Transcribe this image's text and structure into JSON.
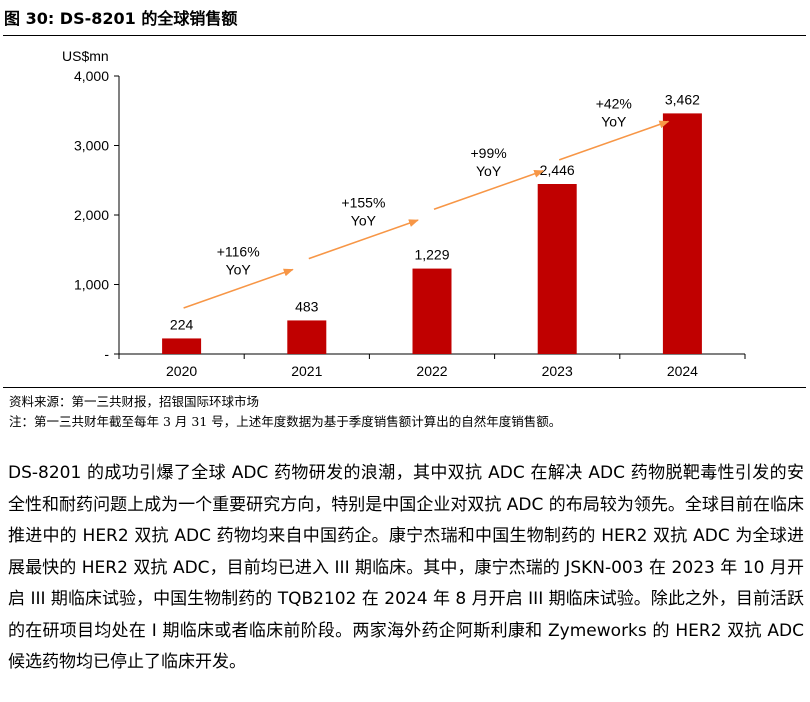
{
  "figure": {
    "title": "图 30: DS-8201 的全球销售额"
  },
  "chart_data": {
    "type": "bar",
    "ylabel": "US$mn",
    "categories": [
      "2020",
      "2021",
      "2022",
      "2023",
      "2024"
    ],
    "values": [
      224,
      483,
      1229,
      2446,
      3462
    ],
    "value_labels": [
      "224",
      "483",
      "1,229",
      "2,446",
      "3,462"
    ],
    "ylim": [
      0,
      4000
    ],
    "yticks": [
      0,
      1000,
      2000,
      3000,
      4000
    ],
    "ytick_labels": [
      "-",
      "1,000",
      "2,000",
      "3,000",
      "4,000"
    ],
    "bar_color": "#C00000",
    "growth_arrow_color": "#F79646",
    "growth_annotations": [
      {
        "pct": "+116%",
        "unit": "YoY"
      },
      {
        "pct": "+155%",
        "unit": "YoY"
      },
      {
        "pct": "+99%",
        "unit": "YoY"
      },
      {
        "pct": "+42%",
        "unit": "YoY"
      }
    ],
    "grid": false
  },
  "source_notes": {
    "source": "资料来源：第一三共财报，招银国际环球市场",
    "note": "注：第一三共财年截至每年 3 月 31 号，上述年度数据为基于季度销售额计算出的自然年度销售额。"
  },
  "body": {
    "paragraph": "DS-8201 的成功引爆了全球 ADC 药物研发的浪潮，其中双抗 ADC 在解决 ADC 药物脱靶毒性引发的安全性和耐药问题上成为一个重要研究方向，特别是中国企业对双抗 ADC 的布局较为领先。全球目前在临床推进中的 HER2 双抗 ADC 药物均来自中国药企。康宁杰瑞和中国生物制药的 HER2 双抗 ADC 为全球进展最快的 HER2 双抗 ADC，目前均已进入 III 期临床。其中，康宁杰瑞的 JSKN-003 在 2023 年 10 月开启 III 期临床试验，中国生物制药的 TQB2102 在 2024 年 8 月开启 III 期临床试验。除此之外，目前活跃的在研项目均处在 I 期临床或者临床前阶段。两家海外药企阿斯利康和 Zymeworks 的 HER2 双抗 ADC 候选药物均已停止了临床开发。"
  }
}
